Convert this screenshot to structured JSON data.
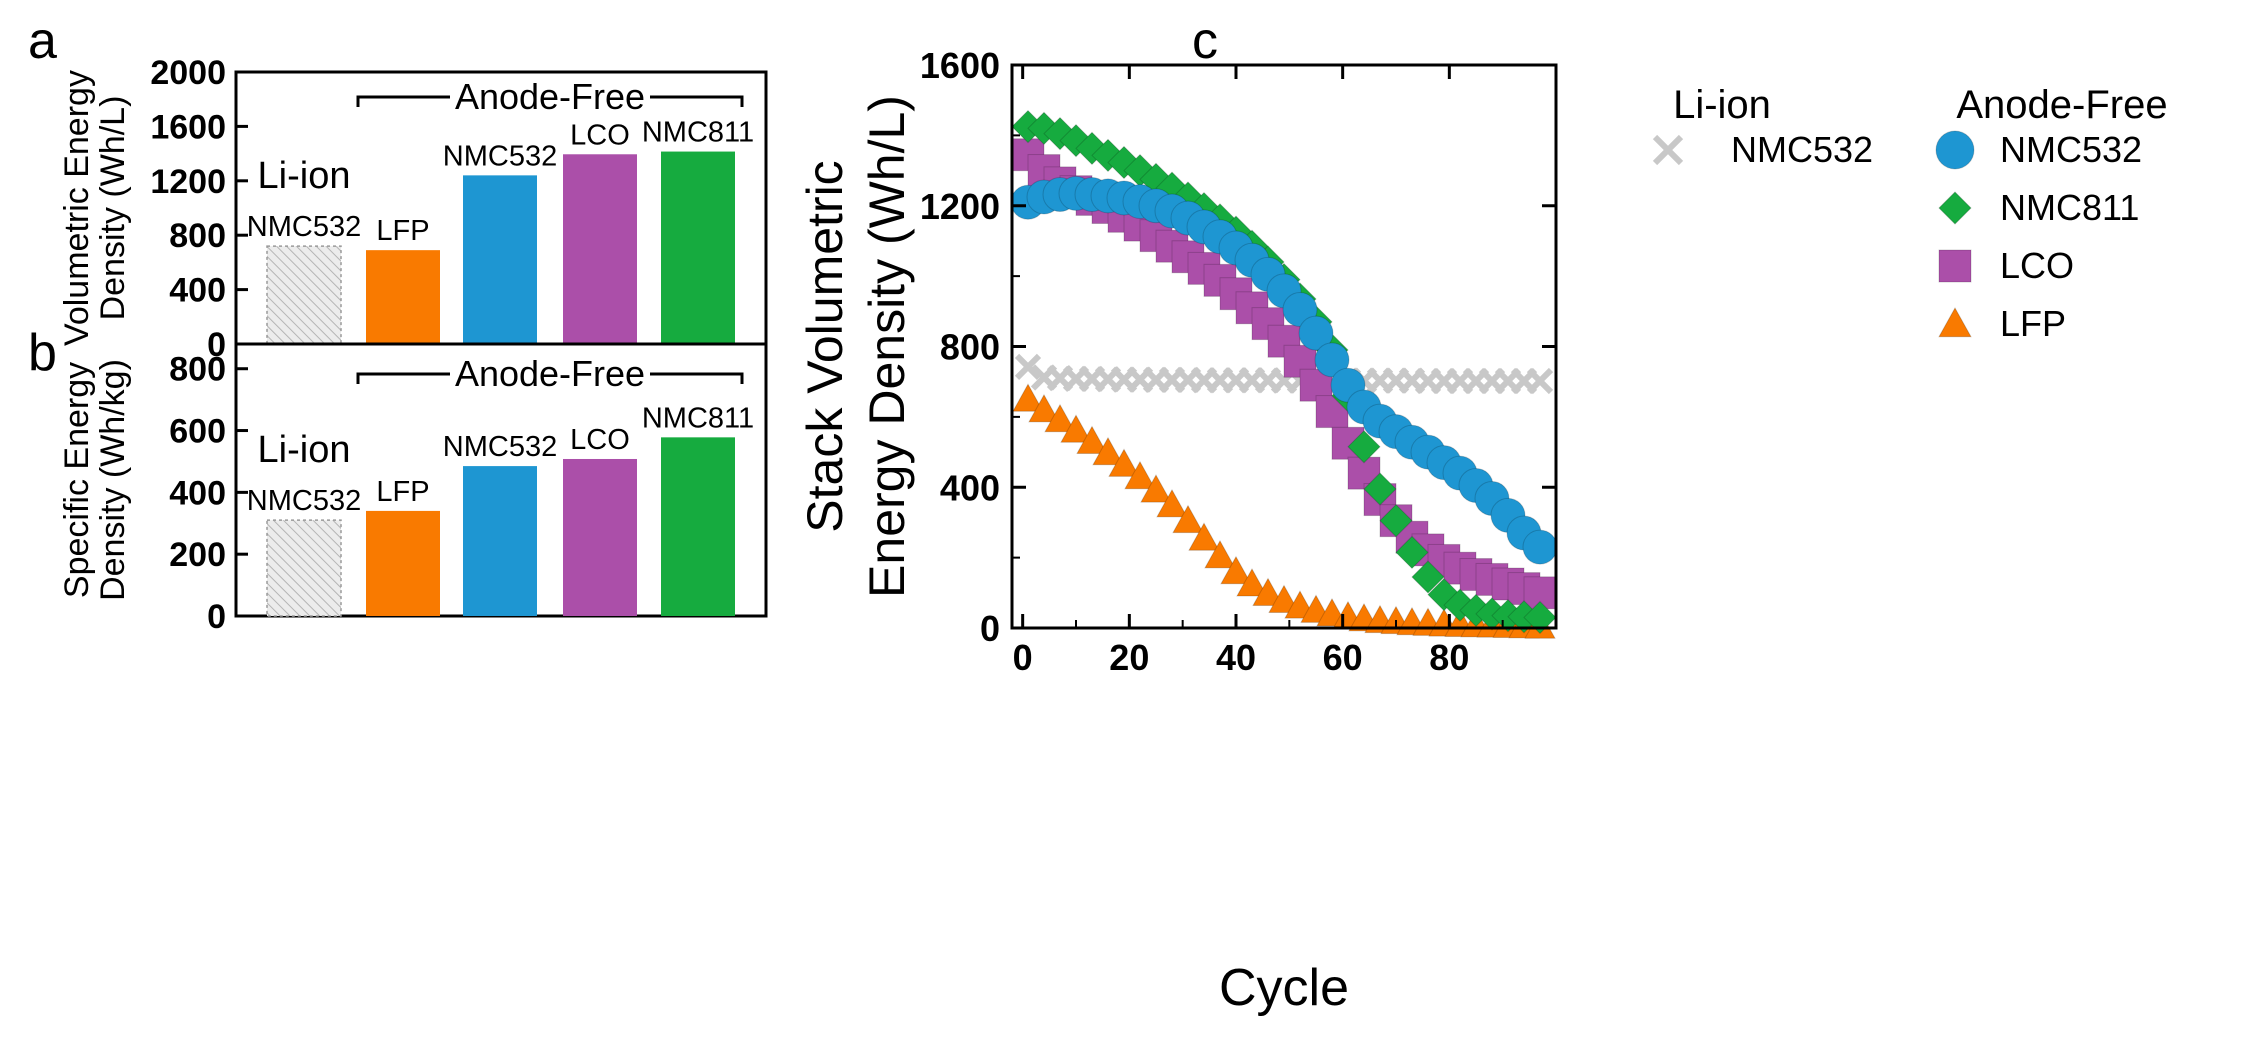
{
  "colors": {
    "lion_fill": "#e6e6e6",
    "lfp": "#f97a00",
    "nmc532": "#1e96d2",
    "lco": "#ab4fa9",
    "nmc811": "#16ab3f",
    "lion_marker": "#c8c8c8"
  },
  "chart_data": [
    {
      "panel": "a",
      "type": "bar",
      "ylabel": [
        "Volumetric Energy",
        "Density (Wh/L)"
      ],
      "ylim": [
        0,
        2000
      ],
      "yticks": [
        "0",
        "400",
        "800",
        "1200",
        "1600",
        "2000"
      ],
      "group_label": "Anode-Free",
      "bars": [
        {
          "group": "Li-ion",
          "label": "NMC532",
          "value": 720,
          "color_key": "lion_fill",
          "hatched": true
        },
        {
          "group": "Anode-Free",
          "label": "LFP",
          "value": 690,
          "color_key": "lfp"
        },
        {
          "group": "Anode-Free",
          "label": "NMC532",
          "value": 1240,
          "color_key": "nmc532"
        },
        {
          "group": "Anode-Free",
          "label": "LCO",
          "value": 1395,
          "color_key": "lco"
        },
        {
          "group": "Anode-Free",
          "label": "NMC811",
          "value": 1415,
          "color_key": "nmc811"
        }
      ]
    },
    {
      "panel": "b",
      "type": "bar",
      "ylabel": [
        "Specific Energy",
        "Density (Wh/kg)"
      ],
      "ylim": [
        0,
        880
      ],
      "yticks": [
        "0",
        "200",
        "400",
        "600",
        "800"
      ],
      "group_label": "Anode-Free",
      "bars": [
        {
          "group": "Li-ion",
          "label": "NMC532",
          "value": 310,
          "color_key": "lion_fill",
          "hatched": true
        },
        {
          "group": "Anode-Free",
          "label": "LFP",
          "value": 340,
          "color_key": "lfp"
        },
        {
          "group": "Anode-Free",
          "label": "NMC532",
          "value": 485,
          "color_key": "nmc532"
        },
        {
          "group": "Anode-Free",
          "label": "LCO",
          "value": 508,
          "color_key": "lco"
        },
        {
          "group": "Anode-Free",
          "label": "NMC811",
          "value": 578,
          "color_key": "nmc811"
        }
      ]
    },
    {
      "panel": "c",
      "type": "scatter",
      "xlabel": "Cycle",
      "ylabel": [
        "Stack Volumetric",
        "Energy Density (Wh/L)"
      ],
      "xlim": [
        -2,
        100
      ],
      "ylim": [
        0,
        1600
      ],
      "xticks": [
        0,
        20,
        40,
        60,
        80
      ],
      "yticks": [
        0,
        400,
        800,
        1200,
        1600
      ],
      "legend_li_ion": {
        "title": "Li-ion",
        "name": "NMC532"
      },
      "legend_anode_free_title": "Anode-Free",
      "series": [
        {
          "name": "NMC532",
          "marker": "circle",
          "color_key": "nmc532",
          "x": [
            1,
            4,
            7,
            10,
            13,
            16,
            19,
            22,
            25,
            28,
            31,
            34,
            37,
            40,
            43,
            46,
            49,
            52,
            55,
            58,
            61,
            64,
            67,
            70,
            73,
            76,
            79,
            82,
            85,
            88,
            91,
            94,
            97
          ],
          "y": [
            1210,
            1225,
            1232,
            1235,
            1232,
            1228,
            1222,
            1212,
            1200,
            1185,
            1165,
            1140,
            1112,
            1080,
            1045,
            1005,
            958,
            905,
            838,
            762,
            690,
            628,
            588,
            558,
            528,
            500,
            470,
            440,
            405,
            368,
            320,
            270,
            230
          ]
        },
        {
          "name": "NMC811",
          "marker": "diamond",
          "color_key": "nmc811",
          "x": [
            1,
            4,
            7,
            10,
            13,
            16,
            19,
            22,
            25,
            28,
            31,
            34,
            37,
            40,
            43,
            46,
            49,
            52,
            55,
            58,
            61,
            64,
            67,
            70,
            73,
            76,
            79,
            82,
            85,
            88,
            91,
            94,
            97
          ],
          "y": [
            1425,
            1420,
            1405,
            1385,
            1363,
            1343,
            1323,
            1300,
            1275,
            1250,
            1222,
            1192,
            1160,
            1125,
            1085,
            1040,
            990,
            935,
            870,
            790,
            660,
            515,
            395,
            305,
            215,
            145,
            95,
            65,
            50,
            40,
            35,
            32,
            30
          ]
        },
        {
          "name": "LCO",
          "marker": "square",
          "color_key": "lco",
          "x": [
            1,
            4,
            7,
            10,
            13,
            16,
            19,
            22,
            25,
            28,
            31,
            34,
            37,
            40,
            43,
            46,
            49,
            52,
            55,
            58,
            61,
            64,
            67,
            70,
            73,
            76,
            79,
            82,
            85,
            88,
            91,
            94,
            97
          ],
          "y": [
            1345,
            1300,
            1265,
            1240,
            1218,
            1195,
            1170,
            1145,
            1115,
            1085,
            1055,
            1022,
            988,
            950,
            910,
            865,
            815,
            758,
            690,
            615,
            525,
            440,
            365,
            305,
            258,
            222,
            192,
            170,
            152,
            138,
            125,
            112,
            100
          ]
        },
        {
          "name": "LFP",
          "marker": "triangle",
          "color_key": "lfp",
          "x": [
            1,
            4,
            7,
            10,
            13,
            16,
            19,
            22,
            25,
            28,
            31,
            34,
            37,
            40,
            43,
            46,
            49,
            52,
            55,
            58,
            61,
            64,
            67,
            70,
            73,
            76,
            79,
            82,
            85,
            88,
            91,
            94,
            97
          ],
          "y": [
            650,
            620,
            592,
            562,
            530,
            498,
            465,
            430,
            392,
            350,
            305,
            255,
            205,
            160,
            125,
            98,
            78,
            62,
            50,
            40,
            32,
            26,
            21,
            18,
            15,
            13,
            11,
            10,
            9,
            8,
            7,
            6,
            5
          ]
        },
        {
          "name": "Li-ion NMC532",
          "marker": "cross",
          "color_key": "lion_marker",
          "x": [
            1,
            4,
            7,
            10,
            13,
            16,
            19,
            22,
            25,
            28,
            31,
            34,
            37,
            40,
            43,
            46,
            49,
            52,
            55,
            58,
            61,
            64,
            67,
            70,
            73,
            76,
            79,
            82,
            85,
            88,
            91,
            94,
            97
          ],
          "y": [
            742,
            712,
            710,
            708,
            708,
            707,
            706,
            706,
            705,
            705,
            705,
            704,
            704,
            704,
            704,
            704,
            703,
            703,
            703,
            703,
            703,
            703,
            703,
            703,
            703,
            702,
            702,
            702,
            702,
            702,
            702,
            702,
            702
          ]
        }
      ]
    }
  ],
  "panel_labels": {
    "a": "a",
    "b": "b",
    "c": "c"
  }
}
